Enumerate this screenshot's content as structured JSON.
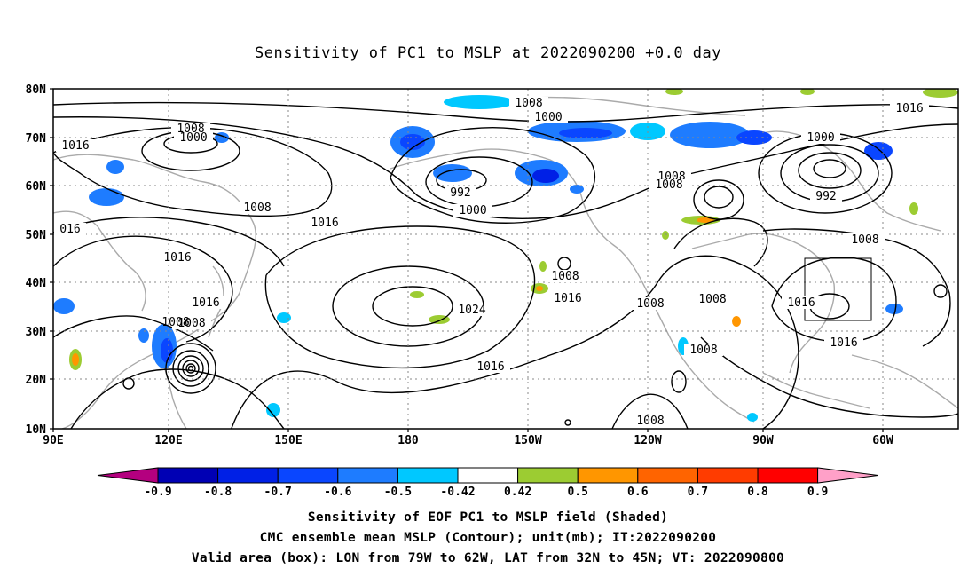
{
  "title": "Sensitivity of PC1 to MSLP at 2022090200 +0.0 day",
  "lat_labels": [
    "80N",
    "70N",
    "60N",
    "50N",
    "40N",
    "30N",
    "20N",
    "10N"
  ],
  "lon_labels": [
    "90E",
    "120E",
    "150E",
    "180",
    "150W",
    "120W",
    "90W",
    "60W"
  ],
  "contour_labels": [
    "1008",
    "1000",
    "1016",
    "1008",
    "1016",
    "016",
    "1016",
    "1016",
    "1008",
    "1008",
    "1000",
    "992",
    "1000",
    "1008",
    "1024",
    "1016",
    "1008",
    "1016",
    "1008",
    "1008",
    "1008",
    "1008",
    "1008",
    "992",
    "1000",
    "1008",
    "1016",
    "1016",
    "1008",
    "1016"
  ],
  "colorbar": {
    "ticks": [
      "-0.9",
      "-0.8",
      "-0.7",
      "-0.6",
      "-0.5",
      "-0.42",
      "0.42",
      "0.5",
      "0.6",
      "0.7",
      "0.8",
      "0.9"
    ],
    "colors": [
      "#b4007f",
      "#0000b4",
      "#0020e6",
      "#0a46ff",
      "#1e7cff",
      "#00c8ff",
      "#ffffff",
      "#9ccc32",
      "#ff9600",
      "#ff6400",
      "#ff3c00",
      "#ff0000",
      "#ffa0c8"
    ]
  },
  "captions": {
    "line1": "Sensitivity of EOF PC1 to MSLP field (Shaded)",
    "line2": "CMC ensemble mean MSLP (Contour); unit(mb); IT:2022090200",
    "line3": "Valid area (box): LON from 79W to 62W, LAT from 32N to 45N; VT: 2022090800"
  }
}
